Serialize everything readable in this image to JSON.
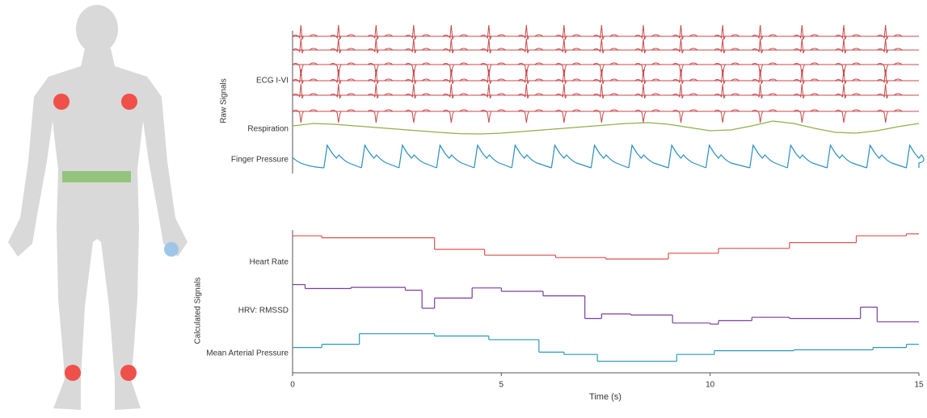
{
  "chart_data": [
    {
      "type": "signals",
      "group_label": "Raw Signals",
      "xlim": [
        0,
        15
      ],
      "series": [
        {
          "name": "ECG I-VI",
          "color": "#c9484a",
          "leads": 6,
          "beats": [
            0.2,
            1.1,
            2.0,
            2.9,
            3.8,
            4.7,
            5.6,
            6.5,
            7.4,
            8.4,
            9.3,
            10.3,
            11.2,
            12.2,
            13.2,
            14.2
          ]
        },
        {
          "name": "Respiration",
          "color": "#8db04a",
          "x": [
            0,
            0.5,
            1,
            1.5,
            2,
            2.5,
            3,
            3.5,
            4,
            4.5,
            5,
            5.5,
            6,
            6.5,
            7,
            7.5,
            8,
            8.5,
            9,
            9.5,
            10,
            10.5,
            11,
            11.5,
            12,
            12.5,
            13,
            13.5,
            14,
            14.5,
            15
          ],
          "values": [
            0.6,
            0.75,
            0.7,
            0.6,
            0.5,
            0.4,
            0.3,
            0.2,
            0.12,
            0.1,
            0.15,
            0.25,
            0.35,
            0.45,
            0.55,
            0.65,
            0.75,
            0.8,
            0.7,
            0.5,
            0.3,
            0.35,
            0.6,
            0.9,
            0.75,
            0.45,
            0.2,
            0.15,
            0.3,
            0.55,
            0.75
          ]
        },
        {
          "name": "Finger Pressure",
          "color": "#2a8fbf",
          "beats": [
            0.75,
            1.65,
            2.55,
            3.45,
            4.35,
            5.25,
            6.2,
            7.15,
            8.05,
            9.0,
            9.9,
            10.95,
            11.85,
            12.8,
            13.75,
            14.7
          ]
        }
      ]
    },
    {
      "type": "steps",
      "group_label": "Calculated Signals",
      "xlim": [
        0,
        15
      ],
      "xticks": [
        0,
        5,
        10,
        15
      ],
      "xlabel": "Time (s)",
      "ylim": [
        0,
        100
      ],
      "series": [
        {
          "name": "Heart Rate",
          "color": "#d9534f",
          "x": [
            0,
            0.7,
            3.4,
            4.6,
            6.3,
            7.5,
            9.0,
            10.2,
            11.9,
            13.5,
            14.7
          ],
          "values": [
            88,
            84,
            60,
            48,
            43,
            40,
            52,
            62,
            74,
            88,
            92
          ]
        },
        {
          "name": "HRV: RMSSD",
          "color": "#7b3f9e",
          "x": [
            0,
            0.3,
            1.4,
            2.7,
            3.1,
            3.4,
            4.3,
            5.0,
            6.0,
            7.0,
            7.4,
            8.1,
            9.1,
            10.0,
            10.2,
            11.0,
            11.9,
            13.6,
            14.0
          ],
          "values": [
            82,
            75,
            77,
            72,
            40,
            58,
            76,
            70,
            62,
            22,
            30,
            28,
            14,
            12,
            18,
            24,
            22,
            42,
            16
          ]
        },
        {
          "name": "Mean Arterial Pressure",
          "color": "#2a9bb5",
          "x": [
            0,
            0.7,
            1.6,
            3.4,
            4.7,
            5.9,
            6.5,
            7.3,
            9.2,
            10.1,
            12.0,
            13.9,
            14.7
          ],
          "values": [
            55,
            62,
            85,
            80,
            72,
            45,
            40,
            25,
            40,
            48,
            50,
            55,
            62
          ]
        }
      ]
    }
  ]
}
